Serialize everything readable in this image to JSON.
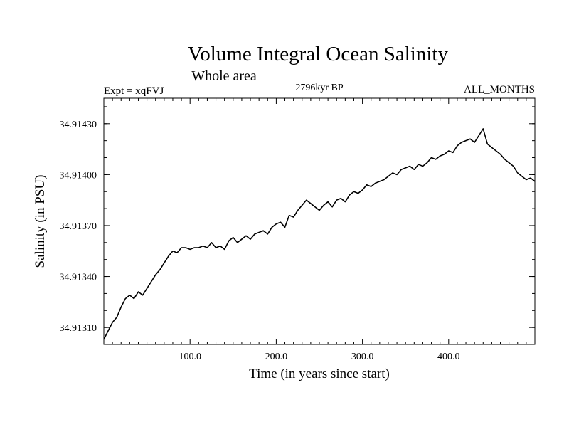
{
  "chart_data": {
    "type": "line",
    "title": "Volume Integral Ocean Salinity",
    "subtitle": "Whole area",
    "annotations": {
      "left": "Expt = xqFVJ",
      "center": "2796kyr BP",
      "right": "ALL_MONTHS"
    },
    "xlabel": "Time (in years since start)",
    "ylabel": "Salinity (in PSU)",
    "xlim": [
      0,
      500
    ],
    "ylim": [
      34.913,
      34.91445
    ],
    "x_ticks": [
      {
        "value": 100,
        "label": "100.0"
      },
      {
        "value": 200,
        "label": "200.0"
      },
      {
        "value": 300,
        "label": "300.0"
      },
      {
        "value": 400,
        "label": "400.0"
      }
    ],
    "y_ticks": [
      {
        "value": 34.9131,
        "label": "34.91310"
      },
      {
        "value": 34.9134,
        "label": "34.91340"
      },
      {
        "value": 34.9137,
        "label": "34.91370"
      },
      {
        "value": 34.914,
        "label": "34.91400"
      },
      {
        "value": 34.9143,
        "label": "34.91430"
      }
    ],
    "series": [
      {
        "name": "Salinity",
        "x": [
          0,
          5,
          10,
          15,
          20,
          25,
          30,
          35,
          40,
          45,
          50,
          55,
          60,
          65,
          70,
          75,
          80,
          85,
          90,
          95,
          100,
          105,
          110,
          115,
          120,
          125,
          130,
          135,
          140,
          145,
          150,
          155,
          160,
          165,
          170,
          175,
          180,
          185,
          190,
          195,
          200,
          205,
          210,
          215,
          220,
          225,
          230,
          235,
          240,
          245,
          250,
          255,
          260,
          265,
          270,
          275,
          280,
          285,
          290,
          295,
          300,
          305,
          310,
          315,
          320,
          325,
          330,
          335,
          340,
          345,
          350,
          355,
          360,
          365,
          370,
          375,
          380,
          385,
          390,
          395,
          400,
          405,
          410,
          415,
          420,
          425,
          430,
          435,
          440,
          445,
          450,
          455,
          460,
          465,
          470,
          475,
          480,
          485,
          490,
          495,
          500
        ],
        "values": [
          34.91303,
          34.91308,
          34.91313,
          34.91316,
          34.91322,
          34.91327,
          34.91329,
          34.91327,
          34.91331,
          34.91329,
          34.91333,
          34.91337,
          34.91341,
          34.91344,
          34.91348,
          34.91352,
          34.91355,
          34.91354,
          34.91357,
          34.91357,
          34.91356,
          34.91357,
          34.91357,
          34.91358,
          34.91357,
          34.9136,
          34.91357,
          34.91358,
          34.91356,
          34.91361,
          34.91363,
          34.9136,
          34.91362,
          34.91364,
          34.91362,
          34.91365,
          34.91366,
          34.91367,
          34.91365,
          34.91369,
          34.91371,
          34.91372,
          34.91369,
          34.91376,
          34.91375,
          34.91379,
          34.91382,
          34.91385,
          34.91383,
          34.91381,
          34.91379,
          34.91382,
          34.91384,
          34.91381,
          34.91385,
          34.91386,
          34.91384,
          34.91388,
          34.9139,
          34.91389,
          34.91391,
          34.91394,
          34.91393,
          34.91395,
          34.91396,
          34.91397,
          34.91399,
          34.91401,
          34.914,
          34.91403,
          34.91404,
          34.91405,
          34.91403,
          34.91406,
          34.91405,
          34.91407,
          34.9141,
          34.91409,
          34.91411,
          34.91412,
          34.91414,
          34.91413,
          34.91417,
          34.91419,
          34.9142,
          34.91421,
          34.91419,
          34.91423,
          34.91427,
          34.91418,
          34.91416,
          34.91414,
          34.91412,
          34.91409,
          34.91407,
          34.91405,
          34.91401,
          34.91399,
          34.91397,
          34.91398,
          34.91396
        ]
      }
    ],
    "grid": false
  }
}
